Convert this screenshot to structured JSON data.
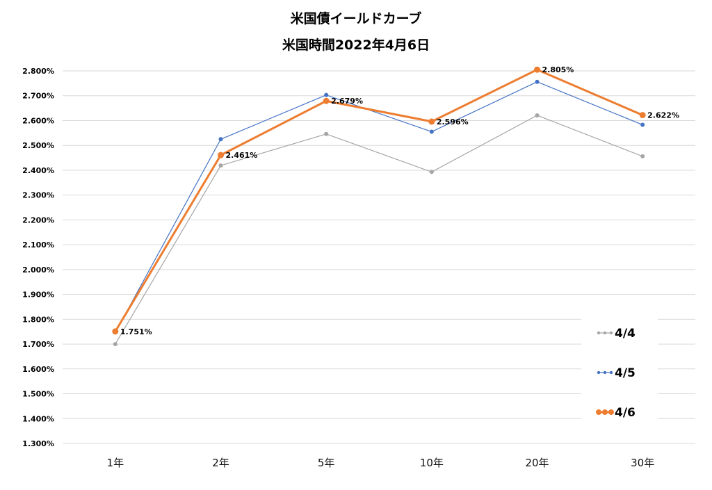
{
  "chart_data": {
    "type": "line",
    "title": "米国債イールドカーブ",
    "subtitle": "米国時間2022年4月6日",
    "xlabel": "",
    "ylabel": "",
    "categories": [
      "1年",
      "2年",
      "5年",
      "10年",
      "20年",
      "30年"
    ],
    "ylim": [
      1.3,
      2.8
    ],
    "ytick_step": 0.1,
    "ytick_labels": [
      "1.300%",
      "1.400%",
      "1.500%",
      "1.600%",
      "1.700%",
      "1.800%",
      "1.900%",
      "2.000%",
      "2.100%",
      "2.200%",
      "2.300%",
      "2.400%",
      "2.500%",
      "2.600%",
      "2.700%",
      "2.800%"
    ],
    "grid": true,
    "legend": "bottom-right",
    "series": [
      {
        "name": "4/4",
        "color": "#a5a5a5",
        "line_weight": "thin",
        "values": [
          1.7,
          2.419,
          2.546,
          2.393,
          2.621,
          2.456
        ]
      },
      {
        "name": "4/5",
        "color": "#4472c4",
        "line_weight": "thin",
        "values": [
          1.747,
          2.525,
          2.703,
          2.555,
          2.756,
          2.583
        ]
      },
      {
        "name": "4/6",
        "color": "#ed7d31",
        "line_weight": "thick",
        "values": [
          1.751,
          2.461,
          2.679,
          2.596,
          2.805,
          2.622
        ],
        "data_labels": [
          "1.751%",
          "2.461%",
          "2.679%",
          "2.596%",
          "2.805%",
          "2.622%"
        ]
      }
    ]
  }
}
